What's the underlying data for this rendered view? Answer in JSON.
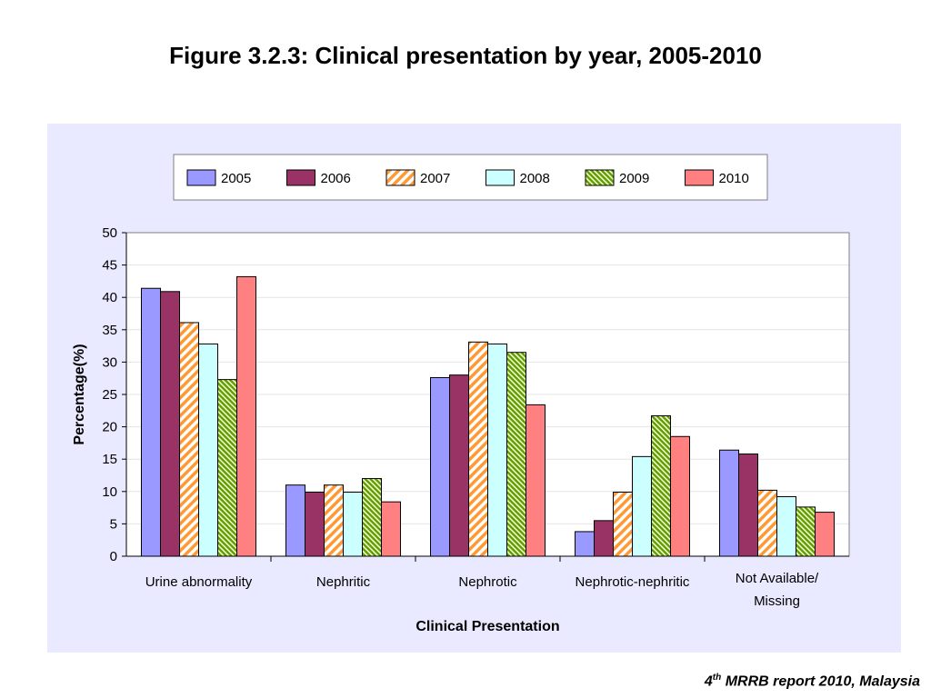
{
  "title": "Figure 3.2.3: Clinical presentation by year, 2005-2010",
  "footer": {
    "number": "4",
    "superscript": "th",
    "text": " MRRB report 2010, Malaysia"
  },
  "chart_data": {
    "type": "bar",
    "title": "Figure 3.2.3: Clinical presentation by year, 2005-2010",
    "xlabel": "Clinical Presentation",
    "ylabel": "Percentage(%)",
    "ylim": [
      0,
      50
    ],
    "yticks": [
      0,
      5,
      10,
      15,
      20,
      25,
      30,
      35,
      40,
      45,
      50
    ],
    "grid": true,
    "legend": "top",
    "categories": [
      [
        "Urine abnormality"
      ],
      [
        "Nephritic"
      ],
      [
        "Nephrotic"
      ],
      [
        "Nephrotic-nephritic"
      ],
      [
        "Not Available/",
        "Missing"
      ]
    ],
    "series": [
      {
        "name": "2005",
        "color": "#9999ff",
        "pattern": "solid",
        "values": [
          41.4,
          11.0,
          27.6,
          3.8,
          16.4
        ]
      },
      {
        "name": "2006",
        "color": "#993366",
        "pattern": "solid",
        "values": [
          40.9,
          9.9,
          28.0,
          5.5,
          15.8
        ]
      },
      {
        "name": "2007",
        "color": "#ff9933",
        "pattern": "diagonal-stripes",
        "values": [
          36.1,
          11.0,
          33.1,
          9.9,
          10.2
        ]
      },
      {
        "name": "2008",
        "color": "#ccffff",
        "pattern": "solid",
        "values": [
          32.8,
          9.9,
          32.8,
          15.4,
          9.2
        ]
      },
      {
        "name": "2009",
        "color": "#669900",
        "pattern": "dense-stripes",
        "values": [
          27.3,
          12.0,
          31.5,
          21.7,
          7.6
        ]
      },
      {
        "name": "2010",
        "color": "#ff8080",
        "pattern": "solid",
        "values": [
          43.2,
          8.4,
          23.4,
          18.5,
          6.8
        ]
      }
    ]
  }
}
